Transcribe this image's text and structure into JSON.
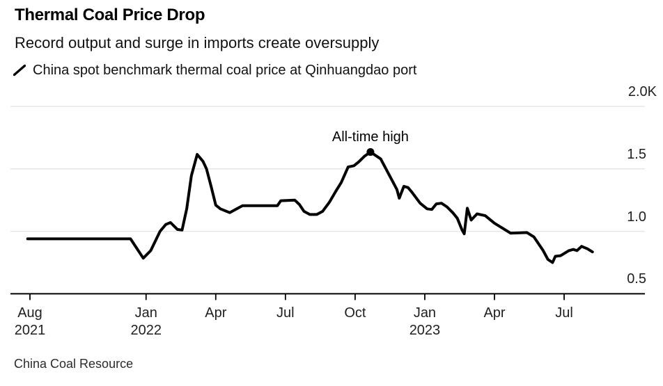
{
  "header": {
    "title": "Thermal Coal Price Drop",
    "subtitle": "Record output and surge in imports create oversupply"
  },
  "legend": {
    "label": "China spot benchmark thermal coal price at Qinhuangdao port",
    "swatch_icon": "diagonal-line-swatch",
    "swatch_color": "#000000"
  },
  "footer": {
    "source": "China Coal Resource"
  },
  "colors": {
    "line": "#000000",
    "grid": "#e6e6e6",
    "axis": "#000000",
    "background": "#ffffff"
  },
  "chart_data": {
    "type": "line",
    "title": "Thermal Coal Price Drop",
    "subtitle": "Record output and surge in imports create oversupply",
    "grid": "horizontal",
    "legend_position": "top-left",
    "x_unit": "months after the Aug 2021 tick",
    "ylim": [
      0.5,
      2.0
    ],
    "y_tick_labels": [
      "2.0K",
      "1.5",
      "1.0",
      "0.5"
    ],
    "y_ticks": [
      {
        "value": 2.0,
        "label": "2.0K"
      },
      {
        "value": 1.5,
        "label": "1.5"
      },
      {
        "value": 1.0,
        "label": "1.0"
      },
      {
        "value": 0.5,
        "label": "0.5"
      }
    ],
    "x_ticks": [
      {
        "m": 0,
        "month": "Aug",
        "year": "2021"
      },
      {
        "m": 5,
        "month": "Jan",
        "year": "2022"
      },
      {
        "m": 8,
        "month": "Apr"
      },
      {
        "m": 11,
        "month": "Jul"
      },
      {
        "m": 14,
        "month": "Oct"
      },
      {
        "m": 17,
        "month": "Jan",
        "year": "2023"
      },
      {
        "m": 20,
        "month": "Apr"
      },
      {
        "m": 23,
        "month": "Jul"
      }
    ],
    "annotation": {
      "text": "All-time high",
      "m": 14.66,
      "value": 1.635
    },
    "series": [
      {
        "name": "China spot benchmark thermal coal price at Qinhuangdao port",
        "points": [
          [
            -0.1,
            0.94
          ],
          [
            4.33,
            0.94
          ],
          [
            4.88,
            0.785
          ],
          [
            5.2,
            0.845
          ],
          [
            5.6,
            1.0
          ],
          [
            5.85,
            1.055
          ],
          [
            6.05,
            1.07
          ],
          [
            6.35,
            1.015
          ],
          [
            6.55,
            1.01
          ],
          [
            6.75,
            1.18
          ],
          [
            6.95,
            1.445
          ],
          [
            7.2,
            1.615
          ],
          [
            7.45,
            1.56
          ],
          [
            7.6,
            1.5
          ],
          [
            7.8,
            1.36
          ],
          [
            8.0,
            1.21
          ],
          [
            8.2,
            1.18
          ],
          [
            8.6,
            1.15
          ],
          [
            9.15,
            1.205
          ],
          [
            10.65,
            1.205
          ],
          [
            10.8,
            1.245
          ],
          [
            11.4,
            1.25
          ],
          [
            11.6,
            1.215
          ],
          [
            11.8,
            1.16
          ],
          [
            12.05,
            1.135
          ],
          [
            12.35,
            1.135
          ],
          [
            12.6,
            1.16
          ],
          [
            12.9,
            1.235
          ],
          [
            13.2,
            1.33
          ],
          [
            13.4,
            1.39
          ],
          [
            13.7,
            1.515
          ],
          [
            13.95,
            1.525
          ],
          [
            14.15,
            1.555
          ],
          [
            14.4,
            1.6
          ],
          [
            14.66,
            1.635
          ],
          [
            15.1,
            1.58
          ],
          [
            15.4,
            1.475
          ],
          [
            15.8,
            1.335
          ],
          [
            15.9,
            1.265
          ],
          [
            16.1,
            1.36
          ],
          [
            16.28,
            1.35
          ],
          [
            16.46,
            1.31
          ],
          [
            16.8,
            1.225
          ],
          [
            17.1,
            1.18
          ],
          [
            17.3,
            1.175
          ],
          [
            17.5,
            1.22
          ],
          [
            17.72,
            1.225
          ],
          [
            17.96,
            1.195
          ],
          [
            18.2,
            1.15
          ],
          [
            18.4,
            1.105
          ],
          [
            18.6,
            1.013
          ],
          [
            18.7,
            0.98
          ],
          [
            18.83,
            1.185
          ],
          [
            19.0,
            1.09
          ],
          [
            19.25,
            1.14
          ],
          [
            19.6,
            1.125
          ],
          [
            20.0,
            1.065
          ],
          [
            20.7,
            0.985
          ],
          [
            21.4,
            0.99
          ],
          [
            21.7,
            0.955
          ],
          [
            22.1,
            0.845
          ],
          [
            22.3,
            0.775
          ],
          [
            22.5,
            0.75
          ],
          [
            22.62,
            0.8
          ],
          [
            22.85,
            0.805
          ],
          [
            23.2,
            0.845
          ],
          [
            23.4,
            0.855
          ],
          [
            23.55,
            0.845
          ],
          [
            23.75,
            0.88
          ],
          [
            24.0,
            0.86
          ],
          [
            24.22,
            0.835
          ]
        ]
      }
    ]
  }
}
